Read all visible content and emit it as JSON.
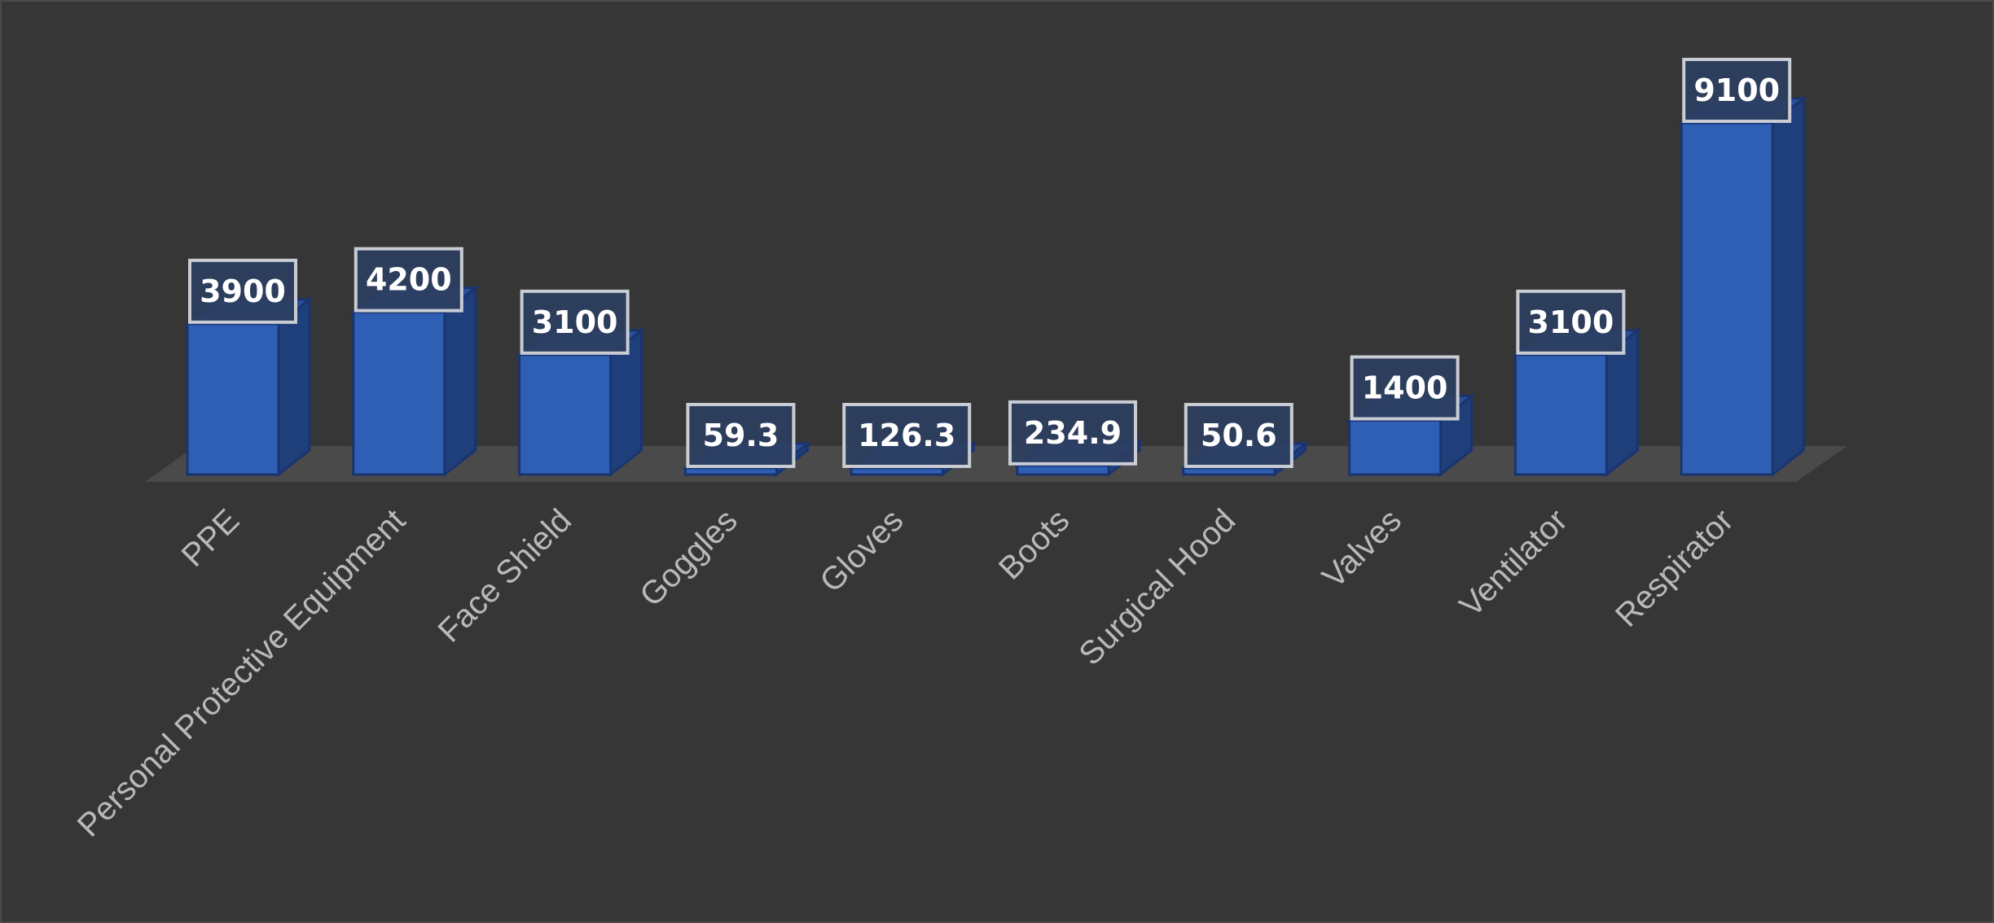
{
  "chart_data": {
    "type": "bar",
    "style": "3d-column",
    "categories": [
      "PPE",
      "Personal Protective Equipment",
      "Face Shield",
      "Goggles",
      "Gloves",
      "Boots",
      "Surgical Hood",
      "Valves",
      "Ventilator",
      "Respirator"
    ],
    "series": [
      {
        "values": [
          3900,
          4200,
          3100,
          59.3,
          126.3,
          234.9,
          50.6,
          1400,
          3100,
          9100
        ]
      }
    ],
    "value_labels": [
      "3900",
      "4200",
      "3100",
      "59.3",
      "126.3",
      "234.9",
      "50.6",
      "1400",
      "3100",
      "9100"
    ],
    "title": "",
    "xlabel": "",
    "ylabel": "",
    "ylim": [
      0,
      9100
    ],
    "grid": false,
    "legend": "none",
    "colors": {
      "background": "#363636",
      "bar_front": "#2f5fb5",
      "bar_side": "#1f3f7a",
      "bar_top": "#2a4f98",
      "bar_edge": "#1a3470",
      "floor": "#4a4a4a",
      "label_box_fill": "#2c3e60",
      "label_box_border": "#c9ccd3",
      "value_text": "#ffffff",
      "category_text": "#b9b9b9"
    }
  }
}
